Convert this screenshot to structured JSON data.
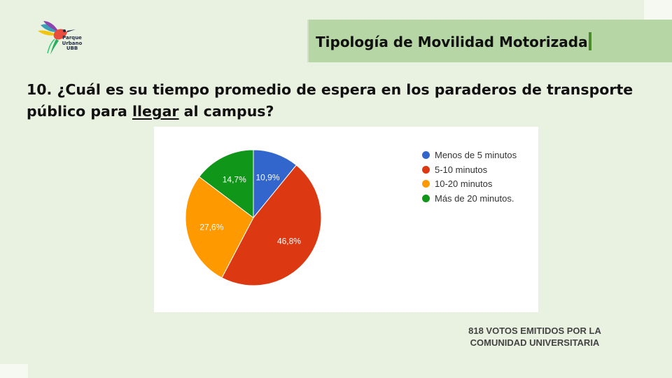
{
  "logo": {
    "line1": "Parque",
    "line2": "Urbano",
    "line3": "UBB"
  },
  "header": {
    "title": "Tipología de Movilidad Motorizada"
  },
  "question": {
    "before": "10. ¿Cuál es su tiempo promedio de espera en los paraderos de transporte público para ",
    "underlined": "llegar",
    "after": " al campus?"
  },
  "chart_data": {
    "type": "pie",
    "title": "",
    "start_angle_deg": 90,
    "direction": "clockwise",
    "legend_position": "right",
    "slices": [
      {
        "label": "Menos de 5 minutos",
        "value": 10.9,
        "display": "10,9%",
        "color": "#3366cc"
      },
      {
        "label": "5-10 minutos",
        "value": 46.8,
        "display": "46,8%",
        "color": "#dc3912"
      },
      {
        "label": "10-20 minutos",
        "value": 27.6,
        "display": "27,6%",
        "color": "#ff9900"
      },
      {
        "label": "Más de 20 minutos.",
        "value": 14.7,
        "display": "14,7%",
        "color": "#109618"
      }
    ]
  },
  "footer": {
    "line1": "818  VOTOS EMITIDOS POR LA",
    "line2": "COMUNIDAD UNIVERSITARIA"
  }
}
